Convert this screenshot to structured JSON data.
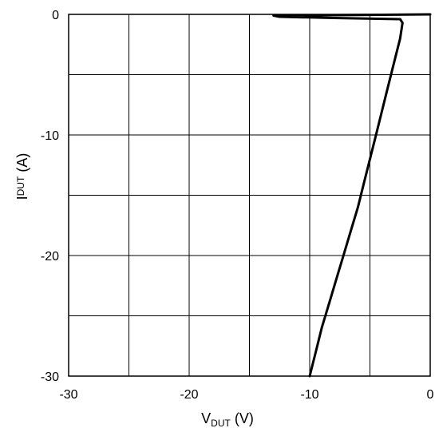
{
  "chart_data": {
    "type": "line",
    "title": "",
    "xlabel": {
      "main": "V",
      "sub": "DUT",
      "unit": " (V)"
    },
    "ylabel": {
      "main": "I",
      "sub": "DUT",
      "unit": " (A)"
    },
    "xlim": [
      -30,
      0
    ],
    "ylim": [
      -30,
      0
    ],
    "x_ticks": [
      -30,
      -20,
      -10,
      0
    ],
    "y_ticks": [
      0,
      -10,
      -20,
      -30
    ],
    "x_tick_labels": [
      "-30",
      "-20",
      "-10",
      "0"
    ],
    "y_tick_labels": [
      "0",
      "-10",
      "-20",
      "-30"
    ],
    "grid": true,
    "grid_step": 5,
    "legend": "none",
    "line_color": "#000000",
    "series": [
      {
        "x": [
          0,
          -13,
          -12.5,
          -8,
          -2.5,
          -2.3,
          -2.5,
          -3.0,
          -3.5,
          -4.0,
          -4.5,
          -5.0,
          -5.5,
          -6.0,
          -6.6,
          -7.2,
          -7.8,
          -8.4,
          -9.0,
          -9.5,
          -10.0
        ],
        "y": [
          0,
          -0.1,
          -0.2,
          -0.3,
          -0.4,
          -0.7,
          -2.0,
          -4.0,
          -6.0,
          -8.0,
          -10.0,
          -12.0,
          -14.0,
          -16.0,
          -18.0,
          -20.0,
          -22.0,
          -24.0,
          -26.0,
          -28.0,
          -30.0
        ]
      }
    ]
  }
}
